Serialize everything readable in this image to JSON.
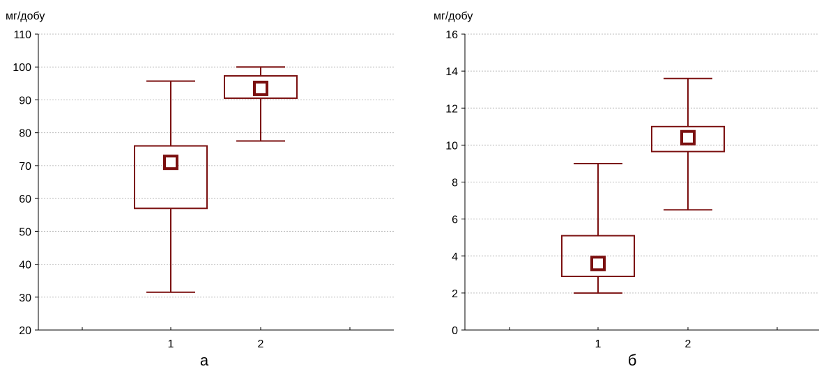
{
  "chart_data": [
    {
      "type": "box",
      "caption": "а",
      "ylabel": "мг/добу",
      "ylim": [
        20,
        110
      ],
      "yticks": [
        20,
        30,
        40,
        50,
        60,
        70,
        80,
        90,
        100,
        110
      ],
      "categories": [
        "1",
        "2"
      ],
      "grid": true,
      "boxes": [
        {
          "category": "1",
          "whisker_min": 31.5,
          "q1": 57,
          "median_marker": 71,
          "q3": 76,
          "whisker_max": 95.7
        },
        {
          "category": "2",
          "whisker_min": 77.5,
          "q1": 90.5,
          "median_marker": 93.5,
          "q3": 97.3,
          "whisker_max": 100
        }
      ]
    },
    {
      "type": "box",
      "caption": "б",
      "ylabel": "мг/добу",
      "ylim": [
        0,
        16
      ],
      "yticks": [
        0,
        2,
        4,
        6,
        8,
        10,
        12,
        14,
        16
      ],
      "categories": [
        "1",
        "2"
      ],
      "grid": true,
      "boxes": [
        {
          "category": "1",
          "whisker_min": 2,
          "q1": 2.9,
          "median_marker": 3.6,
          "q3": 5.1,
          "whisker_max": 9
        },
        {
          "category": "2",
          "whisker_min": 6.5,
          "q1": 9.65,
          "median_marker": 10.4,
          "q3": 11,
          "whisker_max": 13.6
        }
      ]
    }
  ],
  "colors": {
    "box": "#7b1010",
    "grid": "#bdbdbd"
  }
}
